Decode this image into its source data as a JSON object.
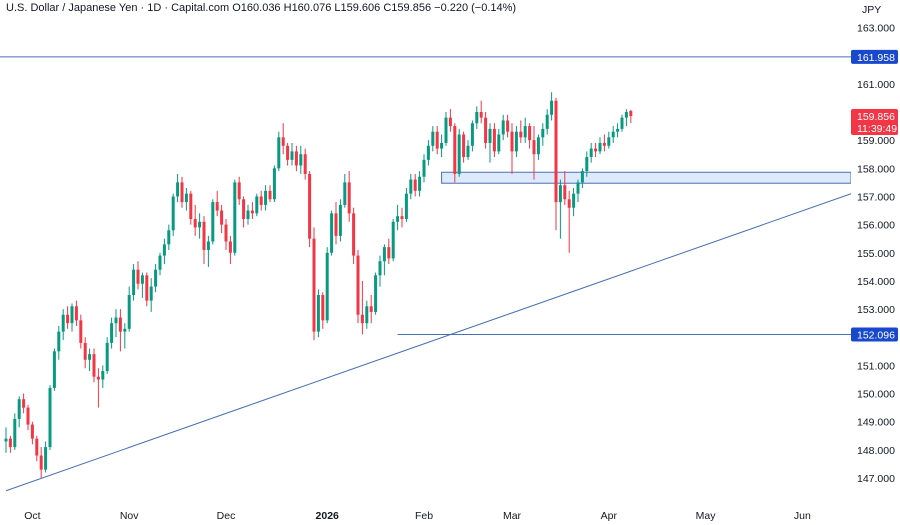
{
  "header": {
    "symbol": "U.S. Dollar / Japanese Yen · 1D · Capital.com",
    "open": "O160.036",
    "high": "H160.076",
    "low": "L159.606",
    "close": "C159.856",
    "change": "−0.220 (−0.14%)"
  },
  "colors": {
    "up": "#089981",
    "down": "#f23645",
    "line": "#4a6fb5",
    "zone_fill": "#ddeafc",
    "badge": "#1848cc",
    "price_badge": "#f23645"
  },
  "chart_data": {
    "type": "candlestick",
    "currency": "JPY",
    "ylim": [
      146.4,
      163.3
    ],
    "y_ticks": [
      147,
      148,
      149,
      150,
      151,
      152,
      153,
      154,
      155,
      156,
      157,
      158,
      159,
      160,
      161,
      162,
      163
    ],
    "y_tick_labels": [
      "147.000",
      "148.000",
      "149.000",
      "150.000",
      "151.000",
      "152.000",
      "153.000",
      "154.000",
      "155.000",
      "156.000",
      "157.000",
      "158.000",
      "159.000",
      "160.000",
      "161.000",
      "162.000",
      "163.000"
    ],
    "x_labels": [
      {
        "label": "Oct",
        "bar": 6,
        "bold": false
      },
      {
        "label": "Nov",
        "bar": 28,
        "bold": false
      },
      {
        "label": "Dec",
        "bar": 50,
        "bold": false
      },
      {
        "label": "2026",
        "bar": 73,
        "bold": true
      },
      {
        "label": "Feb",
        "bar": 95,
        "bold": false
      },
      {
        "label": "Mar",
        "bar": 115,
        "bold": false
      },
      {
        "label": "Apr",
        "bar": 137,
        "bold": false
      },
      {
        "label": "May",
        "bar": 159,
        "bold": false
      },
      {
        "label": "Jun",
        "bar": 181,
        "bold": false
      }
    ],
    "candles": [
      [
        148.3,
        148.8,
        147.9,
        148.4
      ],
      [
        148.4,
        148.5,
        147.9,
        148.1
      ],
      [
        148.1,
        149.3,
        148.0,
        149.1
      ],
      [
        149.1,
        149.9,
        148.8,
        149.8
      ],
      [
        149.8,
        150.0,
        149.3,
        149.5
      ],
      [
        149.5,
        149.6,
        148.7,
        148.9
      ],
      [
        148.9,
        149.0,
        148.2,
        148.4
      ],
      [
        148.4,
        148.5,
        147.6,
        147.8
      ],
      [
        147.8,
        148.1,
        147.0,
        147.3
      ],
      [
        147.3,
        148.3,
        147.2,
        148.1
      ],
      [
        148.1,
        150.3,
        148.0,
        150.2
      ],
      [
        150.2,
        151.6,
        150.1,
        151.5
      ],
      [
        151.5,
        152.4,
        151.2,
        152.2
      ],
      [
        152.2,
        153.0,
        151.9,
        152.8
      ],
      [
        152.8,
        153.1,
        152.3,
        152.5
      ],
      [
        152.5,
        153.2,
        152.2,
        153.1
      ],
      [
        153.1,
        153.3,
        152.4,
        152.6
      ],
      [
        152.6,
        152.8,
        151.6,
        151.8
      ],
      [
        151.8,
        152.0,
        150.9,
        151.2
      ],
      [
        151.2,
        151.6,
        150.8,
        151.4
      ],
      [
        151.4,
        151.6,
        150.4,
        150.6
      ],
      [
        150.6,
        150.9,
        149.5,
        150.5
      ],
      [
        150.5,
        151.0,
        150.2,
        150.8
      ],
      [
        150.8,
        152.0,
        150.7,
        151.8
      ],
      [
        151.8,
        152.7,
        151.6,
        152.5
      ],
      [
        152.5,
        153.0,
        152.0,
        152.7
      ],
      [
        152.7,
        153.0,
        151.5,
        152.2
      ],
      [
        152.2,
        152.5,
        151.6,
        152.3
      ],
      [
        152.3,
        153.8,
        152.2,
        153.5
      ],
      [
        153.5,
        154.6,
        153.3,
        154.4
      ],
      [
        154.4,
        154.7,
        153.7,
        153.9
      ],
      [
        153.9,
        154.3,
        153.4,
        154.2
      ],
      [
        154.2,
        154.3,
        153.1,
        153.3
      ],
      [
        153.3,
        154.1,
        152.9,
        153.8
      ],
      [
        153.8,
        154.6,
        153.6,
        154.4
      ],
      [
        154.4,
        155.0,
        154.2,
        154.9
      ],
      [
        154.9,
        155.5,
        154.6,
        155.3
      ],
      [
        155.3,
        156.0,
        155.1,
        155.8
      ],
      [
        155.8,
        157.1,
        155.6,
        157.0
      ],
      [
        157.0,
        157.8,
        156.8,
        157.5
      ],
      [
        157.5,
        157.7,
        156.6,
        156.8
      ],
      [
        156.8,
        157.3,
        156.5,
        157.1
      ],
      [
        157.1,
        157.2,
        156.0,
        156.2
      ],
      [
        156.2,
        156.7,
        155.6,
        155.9
      ],
      [
        155.9,
        156.4,
        155.5,
        156.1
      ],
      [
        156.1,
        156.3,
        154.6,
        155.1
      ],
      [
        155.1,
        155.6,
        154.5,
        155.4
      ],
      [
        155.4,
        156.9,
        155.3,
        156.8
      ],
      [
        156.8,
        157.2,
        156.3,
        156.5
      ],
      [
        156.5,
        156.7,
        155.7,
        156.0
      ],
      [
        156.0,
        156.2,
        155.1,
        155.4
      ],
      [
        155.4,
        155.6,
        154.6,
        155.0
      ],
      [
        155.0,
        157.6,
        154.9,
        157.5
      ],
      [
        157.5,
        157.7,
        156.7,
        156.9
      ],
      [
        156.9,
        157.0,
        155.9,
        156.2
      ],
      [
        156.2,
        156.7,
        156.0,
        156.5
      ],
      [
        156.5,
        156.8,
        156.2,
        156.4
      ],
      [
        156.4,
        157.1,
        156.3,
        157.0
      ],
      [
        157.0,
        157.2,
        156.5,
        156.7
      ],
      [
        156.7,
        157.4,
        156.5,
        157.2
      ],
      [
        157.2,
        157.4,
        156.8,
        156.9
      ],
      [
        156.9,
        158.1,
        156.8,
        158.0
      ],
      [
        158.0,
        159.3,
        157.9,
        159.1
      ],
      [
        159.1,
        159.6,
        158.5,
        158.8
      ],
      [
        158.8,
        158.9,
        158.1,
        158.3
      ],
      [
        158.3,
        158.9,
        158.1,
        158.6
      ],
      [
        158.6,
        158.8,
        157.9,
        158.1
      ],
      [
        158.1,
        158.8,
        157.8,
        158.5
      ],
      [
        158.5,
        158.7,
        157.6,
        157.8
      ],
      [
        157.8,
        157.9,
        155.2,
        155.5
      ],
      [
        155.5,
        155.9,
        151.9,
        152.2
      ],
      [
        152.2,
        153.7,
        152.0,
        153.5
      ],
      [
        153.5,
        153.6,
        152.3,
        152.6
      ],
      [
        152.6,
        155.2,
        152.5,
        155.0
      ],
      [
        155.0,
        156.5,
        154.9,
        156.4
      ],
      [
        156.4,
        156.8,
        155.3,
        155.6
      ],
      [
        155.6,
        156.9,
        155.4,
        156.7
      ],
      [
        156.7,
        157.8,
        156.6,
        157.5
      ],
      [
        157.5,
        157.9,
        156.1,
        156.4
      ],
      [
        156.4,
        156.6,
        154.6,
        154.9
      ],
      [
        154.9,
        155.1,
        152.5,
        152.8
      ],
      [
        152.8,
        154.0,
        152.1,
        152.5
      ],
      [
        152.5,
        153.3,
        152.3,
        153.1
      ],
      [
        153.1,
        153.5,
        152.5,
        152.9
      ],
      [
        152.9,
        154.3,
        152.8,
        154.2
      ],
      [
        154.2,
        154.9,
        153.8,
        154.7
      ],
      [
        154.7,
        155.3,
        154.2,
        155.2
      ],
      [
        155.2,
        155.5,
        154.6,
        154.8
      ],
      [
        154.8,
        156.2,
        154.7,
        156.1
      ],
      [
        156.1,
        156.7,
        155.8,
        156.3
      ],
      [
        156.3,
        156.6,
        155.9,
        156.2
      ],
      [
        156.2,
        157.3,
        156.1,
        157.1
      ],
      [
        157.1,
        157.8,
        156.9,
        157.6
      ],
      [
        157.6,
        157.8,
        157.0,
        157.2
      ],
      [
        157.2,
        157.9,
        157.0,
        157.7
      ],
      [
        157.7,
        158.5,
        157.5,
        158.3
      ],
      [
        158.3,
        159.0,
        158.1,
        158.8
      ],
      [
        158.8,
        159.5,
        158.6,
        159.3
      ],
      [
        159.3,
        159.5,
        158.5,
        158.7
      ],
      [
        158.7,
        159.2,
        158.4,
        158.9
      ],
      [
        158.9,
        160.0,
        158.8,
        159.8
      ],
      [
        159.8,
        160.1,
        159.3,
        159.5
      ],
      [
        159.5,
        159.6,
        157.5,
        157.8
      ],
      [
        157.8,
        159.4,
        157.7,
        159.2
      ],
      [
        159.2,
        159.3,
        158.2,
        158.4
      ],
      [
        158.4,
        159.0,
        158.3,
        158.8
      ],
      [
        158.8,
        159.7,
        158.6,
        159.6
      ],
      [
        159.6,
        160.2,
        159.4,
        160.0
      ],
      [
        160.0,
        160.4,
        159.6,
        159.8
      ],
      [
        159.8,
        160.0,
        158.7,
        158.9
      ],
      [
        158.9,
        159.6,
        158.2,
        159.4
      ],
      [
        159.4,
        159.6,
        158.4,
        158.6
      ],
      [
        158.6,
        159.4,
        158.5,
        159.2
      ],
      [
        159.2,
        159.9,
        159.0,
        159.7
      ],
      [
        159.7,
        159.9,
        159.1,
        159.3
      ],
      [
        159.3,
        159.6,
        157.8,
        158.6
      ],
      [
        158.6,
        159.5,
        158.4,
        159.3
      ],
      [
        159.3,
        159.7,
        158.9,
        159.1
      ],
      [
        159.1,
        159.8,
        158.9,
        159.5
      ],
      [
        159.5,
        159.6,
        158.7,
        159.0
      ],
      [
        159.0,
        159.5,
        157.6,
        158.5
      ],
      [
        158.5,
        159.2,
        158.3,
        159.1
      ],
      [
        159.1,
        159.6,
        158.8,
        159.4
      ],
      [
        159.4,
        160.1,
        159.2,
        159.9
      ],
      [
        159.9,
        160.7,
        159.7,
        160.4
      ],
      [
        160.4,
        160.5,
        155.8,
        156.8
      ],
      [
        156.8,
        157.6,
        155.5,
        157.4
      ],
      [
        157.4,
        157.9,
        156.7,
        156.9
      ],
      [
        156.9,
        157.2,
        155.0,
        156.6
      ],
      [
        156.6,
        157.3,
        156.3,
        157.1
      ],
      [
        157.1,
        157.6,
        156.8,
        157.5
      ],
      [
        157.5,
        158.0,
        157.3,
        157.9
      ],
      [
        157.9,
        158.6,
        157.7,
        158.4
      ],
      [
        158.4,
        158.9,
        158.2,
        158.7
      ],
      [
        158.7,
        158.9,
        158.4,
        158.6
      ],
      [
        158.6,
        159.1,
        158.5,
        158.9
      ],
      [
        158.9,
        159.2,
        158.6,
        158.8
      ],
      [
        158.8,
        159.3,
        158.7,
        159.1
      ],
      [
        159.1,
        159.5,
        158.9,
        159.3
      ],
      [
        159.3,
        159.6,
        159.1,
        159.4
      ],
      [
        159.4,
        159.9,
        159.3,
        159.8
      ],
      [
        159.8,
        160.1,
        159.5,
        160.0
      ],
      [
        160.036,
        160.076,
        159.606,
        159.856
      ]
    ],
    "levels": [
      {
        "price": 161.958,
        "label": "161.958"
      },
      {
        "price": 152.096,
        "label": "152.096"
      }
    ],
    "zone": {
      "top": 157.86,
      "bottom": 157.47
    },
    "trendline": {
      "from_bar": 0,
      "from_price": 146.55,
      "to_bar": 183,
      "to_price": 156.6
    },
    "last_price": {
      "label": "159.856",
      "countdown": "11:39:49"
    }
  }
}
